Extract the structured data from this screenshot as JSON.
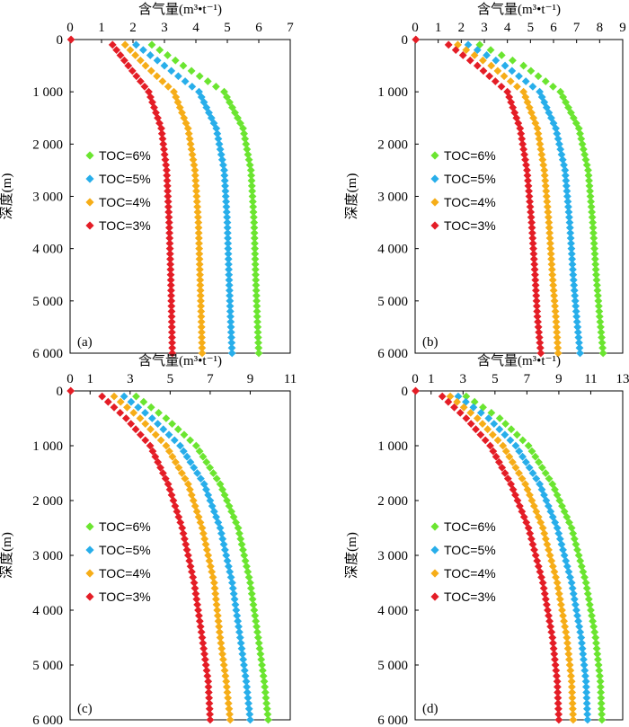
{
  "figure": {
    "x_axis_title": "含气量(m³•t⁻¹)",
    "y_axis_title": "深度(m)"
  },
  "colors": {
    "TOC=6%": "#6be530",
    "TOC=5%": "#28aeea",
    "TOC=4%": "#f6ad18",
    "TOC=3%": "#e41d26"
  },
  "chart_data": [
    {
      "type": "scatter",
      "panel_label": "(a)",
      "xlabel": "含气量(m³•t⁻¹)",
      "ylabel": "深度(m)",
      "xlim": [
        0,
        7
      ],
      "ylim": [
        6000,
        0
      ],
      "x_ticks": [
        "0",
        "1",
        "2",
        "3",
        "4",
        "5",
        "6",
        "7"
      ],
      "y_ticks": [
        "0",
        "1 000",
        "2 000",
        "3 000",
        "4 000",
        "5 000",
        "6 000"
      ],
      "legend_position": "middle-left",
      "series": [
        {
          "name": "TOC=6%",
          "points": [
            [
              0.03,
              0
            ],
            [
              2.6,
              100
            ],
            [
              3.6,
              500
            ],
            [
              4.9,
              1000
            ],
            [
              5.5,
              1700
            ],
            [
              5.75,
              2500
            ],
            [
              5.85,
              3500
            ],
            [
              5.9,
              4500
            ],
            [
              5.95,
              5300
            ],
            [
              6.0,
              6000
            ]
          ]
        },
        {
          "name": "TOC=5%",
          "points": [
            [
              0.03,
              0
            ],
            [
              2.1,
              100
            ],
            [
              3.0,
              500
            ],
            [
              4.1,
              1000
            ],
            [
              4.65,
              1700
            ],
            [
              4.9,
              2500
            ],
            [
              5.0,
              3500
            ],
            [
              5.05,
              4500
            ],
            [
              5.1,
              5300
            ],
            [
              5.15,
              6000
            ]
          ]
        },
        {
          "name": "TOC=4%",
          "points": [
            [
              0.03,
              0
            ],
            [
              1.75,
              100
            ],
            [
              2.4,
              500
            ],
            [
              3.3,
              1000
            ],
            [
              3.75,
              1700
            ],
            [
              3.97,
              2500
            ],
            [
              4.08,
              3500
            ],
            [
              4.13,
              4500
            ],
            [
              4.17,
              5300
            ],
            [
              4.2,
              6000
            ]
          ]
        },
        {
          "name": "TOC=3%",
          "points": [
            [
              0.03,
              0
            ],
            [
              1.35,
              100
            ],
            [
              1.85,
              500
            ],
            [
              2.5,
              1000
            ],
            [
              2.9,
              1700
            ],
            [
              3.07,
              2500
            ],
            [
              3.15,
              3500
            ],
            [
              3.2,
              4500
            ],
            [
              3.23,
              5300
            ],
            [
              3.25,
              6000
            ]
          ]
        }
      ]
    },
    {
      "type": "scatter",
      "panel_label": "(b)",
      "xlabel": "含气量(m³•t⁻¹)",
      "ylabel": "深度(m)",
      "xlim": [
        0,
        9
      ],
      "ylim": [
        6000,
        0
      ],
      "x_ticks": [
        "0",
        "1",
        "2",
        "3",
        "4",
        "5",
        "6",
        "7",
        "8",
        "9"
      ],
      "y_ticks": [
        "0",
        "1 000",
        "2 000",
        "3 000",
        "4 000",
        "5 000",
        "6 000"
      ],
      "legend_position": "middle-left",
      "series": [
        {
          "name": "TOC=6%",
          "points": [
            [
              0.03,
              0
            ],
            [
              2.8,
              100
            ],
            [
              4.7,
              500
            ],
            [
              6.3,
              1000
            ],
            [
              7.1,
              1700
            ],
            [
              7.5,
              2500
            ],
            [
              7.7,
              3500
            ],
            [
              7.85,
              4500
            ],
            [
              8.0,
              5300
            ],
            [
              8.15,
              6000
            ]
          ]
        },
        {
          "name": "TOC=5%",
          "points": [
            [
              0.03,
              0
            ],
            [
              2.3,
              100
            ],
            [
              3.9,
              500
            ],
            [
              5.4,
              1000
            ],
            [
              6.1,
              1700
            ],
            [
              6.5,
              2500
            ],
            [
              6.7,
              3500
            ],
            [
              6.85,
              4500
            ],
            [
              7.0,
              5300
            ],
            [
              7.15,
              6000
            ]
          ]
        },
        {
          "name": "TOC=4%",
          "points": [
            [
              0.03,
              0
            ],
            [
              1.85,
              100
            ],
            [
              3.3,
              500
            ],
            [
              4.7,
              1000
            ],
            [
              5.3,
              1700
            ],
            [
              5.6,
              2500
            ],
            [
              5.8,
              3500
            ],
            [
              5.95,
              4500
            ],
            [
              6.1,
              5300
            ],
            [
              6.2,
              6000
            ]
          ]
        },
        {
          "name": "TOC=3%",
          "points": [
            [
              0.03,
              0
            ],
            [
              1.45,
              100
            ],
            [
              2.7,
              500
            ],
            [
              4.0,
              1000
            ],
            [
              4.55,
              1700
            ],
            [
              4.85,
              2500
            ],
            [
              5.05,
              3500
            ],
            [
              5.2,
              4500
            ],
            [
              5.3,
              5300
            ],
            [
              5.45,
              6000
            ]
          ]
        }
      ]
    },
    {
      "type": "scatter",
      "panel_label": "(c)",
      "xlabel": "含气量(m³•t⁻¹)",
      "ylabel": "深度(m)",
      "xlim": [
        0,
        11
      ],
      "ylim": [
        6000,
        0
      ],
      "x_ticks": [
        "0",
        "1",
        "3",
        "5",
        "7",
        "9",
        "11"
      ],
      "x_tick_values": [
        0,
        1,
        3,
        5,
        7,
        9,
        11
      ],
      "y_ticks": [
        "0",
        "1 000",
        "2 000",
        "3 000",
        "4 000",
        "5 000",
        "6 000"
      ],
      "legend_position": "middle-left",
      "series": [
        {
          "name": "TOC=6%",
          "points": [
            [
              0.03,
              0
            ],
            [
              3.3,
              100
            ],
            [
              4.8,
              500
            ],
            [
              6.3,
              1000
            ],
            [
              7.5,
              1700
            ],
            [
              8.4,
              2500
            ],
            [
              9.0,
              3500
            ],
            [
              9.4,
              4500
            ],
            [
              9.7,
              5300
            ],
            [
              9.9,
              6000
            ]
          ]
        },
        {
          "name": "TOC=5%",
          "points": [
            [
              0.03,
              0
            ],
            [
              2.7,
              100
            ],
            [
              4.1,
              500
            ],
            [
              5.5,
              1000
            ],
            [
              6.7,
              1700
            ],
            [
              7.5,
              2500
            ],
            [
              8.1,
              3500
            ],
            [
              8.5,
              4500
            ],
            [
              8.8,
              5300
            ],
            [
              9.0,
              6000
            ]
          ]
        },
        {
          "name": "TOC=4%",
          "points": [
            [
              0.03,
              0
            ],
            [
              2.2,
              100
            ],
            [
              3.5,
              500
            ],
            [
              4.8,
              1000
            ],
            [
              5.9,
              1700
            ],
            [
              6.6,
              2500
            ],
            [
              7.2,
              3500
            ],
            [
              7.5,
              4500
            ],
            [
              7.8,
              5300
            ],
            [
              8.0,
              6000
            ]
          ]
        },
        {
          "name": "TOC=3%",
          "points": [
            [
              0.03,
              0
            ],
            [
              1.6,
              100
            ],
            [
              2.8,
              500
            ],
            [
              4.0,
              1000
            ],
            [
              4.9,
              1700
            ],
            [
              5.6,
              2500
            ],
            [
              6.2,
              3500
            ],
            [
              6.6,
              4500
            ],
            [
              6.9,
              5300
            ],
            [
              7.0,
              6000
            ]
          ]
        }
      ]
    },
    {
      "type": "scatter",
      "panel_label": "(d)",
      "xlabel": "含气量(m³•t⁻¹)",
      "ylabel": "深度(m)",
      "xlim": [
        0,
        13
      ],
      "ylim": [
        6000,
        0
      ],
      "x_ticks": [
        "0",
        "1",
        "3",
        "5",
        "7",
        "9",
        "11",
        "13"
      ],
      "x_tick_values": [
        0,
        1,
        3,
        5,
        7,
        9,
        11,
        13
      ],
      "y_ticks": [
        "0",
        "1 000",
        "2 000",
        "3 000",
        "4 000",
        "5 000",
        "6 000"
      ],
      "legend_position": "middle-left",
      "series": [
        {
          "name": "TOC=6%",
          "points": [
            [
              0.03,
              0
            ],
            [
              3.2,
              100
            ],
            [
              5.3,
              500
            ],
            [
              7.1,
              1000
            ],
            [
              8.6,
              1700
            ],
            [
              9.8,
              2500
            ],
            [
              10.7,
              3500
            ],
            [
              11.3,
              4500
            ],
            [
              11.6,
              5300
            ],
            [
              11.7,
              6000
            ]
          ]
        },
        {
          "name": "TOC=5%",
          "points": [
            [
              0.03,
              0
            ],
            [
              2.7,
              100
            ],
            [
              4.6,
              500
            ],
            [
              6.3,
              1000
            ],
            [
              7.8,
              1700
            ],
            [
              8.9,
              2500
            ],
            [
              9.8,
              3500
            ],
            [
              10.4,
              4500
            ],
            [
              10.7,
              5300
            ],
            [
              10.8,
              6000
            ]
          ]
        },
        {
          "name": "TOC=4%",
          "points": [
            [
              0.03,
              0
            ],
            [
              2.2,
              100
            ],
            [
              3.9,
              500
            ],
            [
              5.5,
              1000
            ],
            [
              6.9,
              1700
            ],
            [
              8.0,
              2500
            ],
            [
              8.9,
              3500
            ],
            [
              9.5,
              4500
            ],
            [
              9.8,
              5300
            ],
            [
              9.9,
              6000
            ]
          ]
        },
        {
          "name": "TOC=3%",
          "points": [
            [
              0.03,
              0
            ],
            [
              1.7,
              100
            ],
            [
              3.2,
              500
            ],
            [
              4.7,
              1000
            ],
            [
              6.0,
              1700
            ],
            [
              7.1,
              2500
            ],
            [
              8.0,
              3500
            ],
            [
              8.6,
              4500
            ],
            [
              8.9,
              5300
            ],
            [
              9.0,
              6000
            ]
          ]
        }
      ]
    }
  ]
}
